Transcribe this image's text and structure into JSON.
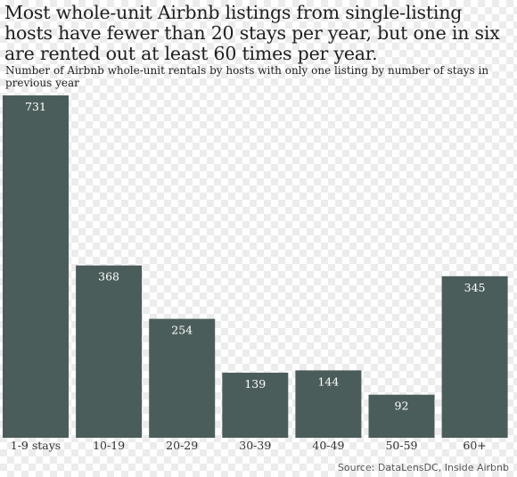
{
  "chart_data": {
    "type": "bar",
    "title": "Most whole-unit Airbnb listings from single-listing hosts have fewer than 20 stays per year, but one in six are rented out at least 60 times per year.",
    "subtitle": "Number of Airbnb whole-unit rentals by hosts with only one listing by number of stays in previous year",
    "source": "Source: DataLensDC, Inside Airbnb",
    "categories": [
      "1-9 stays",
      "10-19",
      "20-29",
      "30-39",
      "40-49",
      "50-59",
      "60+"
    ],
    "values": [
      731,
      368,
      254,
      139,
      144,
      92,
      345
    ],
    "xlabel": "",
    "ylabel": "",
    "ylim": [
      0,
      731
    ],
    "grid": false,
    "legend": "none",
    "bar_color": "#4b5d5a",
    "label_color": "#ffffff"
  }
}
